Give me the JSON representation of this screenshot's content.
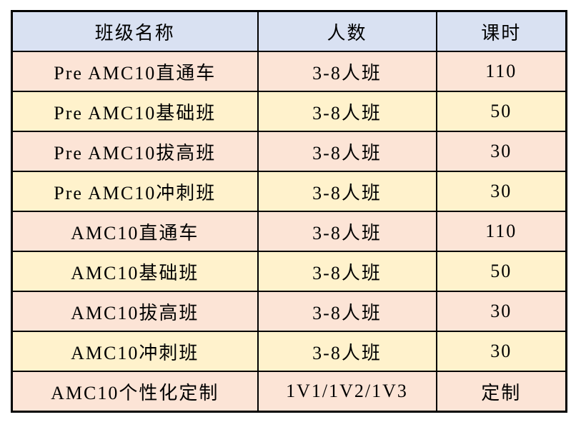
{
  "table": {
    "headers": {
      "class_name": "班级名称",
      "size": "人数",
      "hours": "课时"
    },
    "rows": [
      {
        "class_name": "Pre AMC10直通车",
        "size": "3-8人班",
        "hours": "110"
      },
      {
        "class_name": "Pre AMC10基础班",
        "size": "3-8人班",
        "hours": "50"
      },
      {
        "class_name": "Pre AMC10拔高班",
        "size": "3-8人班",
        "hours": "30"
      },
      {
        "class_name": "Pre AMC10冲刺班",
        "size": "3-8人班",
        "hours": "30"
      },
      {
        "class_name": "AMC10直通车",
        "size": "3-8人班",
        "hours": "110"
      },
      {
        "class_name": "AMC10基础班",
        "size": "3-8人班",
        "hours": "50"
      },
      {
        "class_name": "AMC10拔高班",
        "size": "3-8人班",
        "hours": "30"
      },
      {
        "class_name": "AMC10冲刺班",
        "size": "3-8人班",
        "hours": "30"
      },
      {
        "class_name": "AMC10个性化定制",
        "size": "1V1/1V2/1V3",
        "hours": "定制"
      }
    ]
  },
  "chart_data": {
    "type": "table",
    "columns": [
      "班级名称",
      "人数",
      "课时"
    ],
    "rows": [
      [
        "Pre AMC10直通车",
        "3-8人班",
        "110"
      ],
      [
        "Pre AMC10基础班",
        "3-8人班",
        "50"
      ],
      [
        "Pre AMC10拔高班",
        "3-8人班",
        "30"
      ],
      [
        "Pre AMC10冲刺班",
        "3-8人班",
        "30"
      ],
      [
        "AMC10直通车",
        "3-8人班",
        "110"
      ],
      [
        "AMC10基础班",
        "3-8人班",
        "50"
      ],
      [
        "AMC10拔高班",
        "3-8人班",
        "30"
      ],
      [
        "AMC10冲刺班",
        "3-8人班",
        "30"
      ],
      [
        "AMC10个性化定制",
        "1V1/1V2/1V3",
        "定制"
      ]
    ]
  },
  "colors": {
    "header_bg": "#D9E1F2",
    "row_odd_bg": "#FCE4D6",
    "row_even_bg": "#FFF2CC",
    "border": "#000000"
  }
}
